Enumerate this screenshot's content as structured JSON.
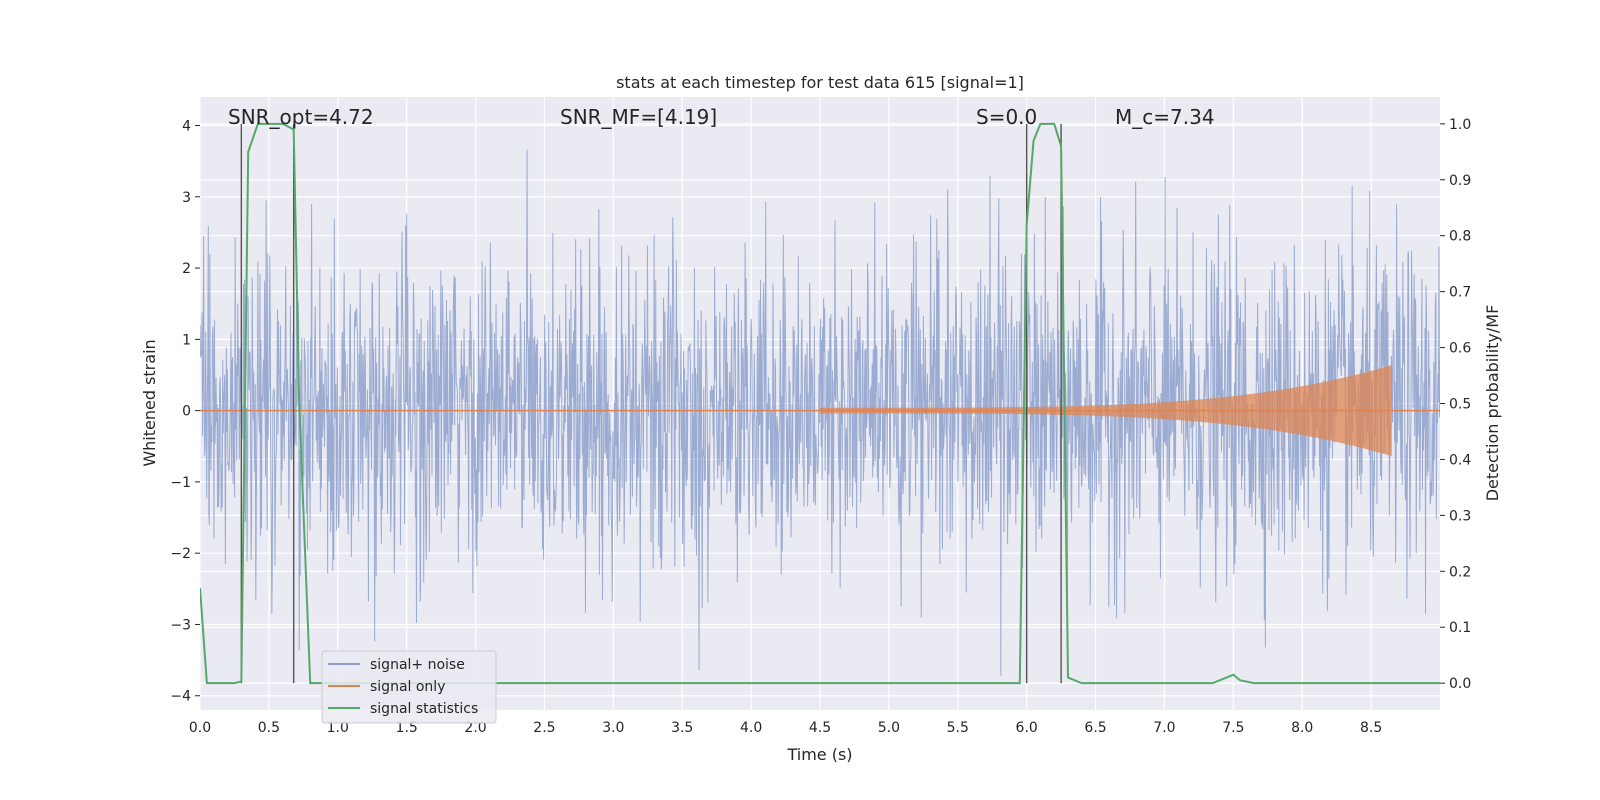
{
  "chart_data": {
    "type": "line",
    "title": "stats at each timestep for test data 615 [signal=1]",
    "xlabel": "Time (s)",
    "ylabel": "Whitened strain",
    "y2label": "Detection probability/MF",
    "xlim": [
      0.0,
      9.0
    ],
    "ylim": [
      -4.2,
      4.4
    ],
    "y2lim": [
      -0.048,
      1.048
    ],
    "xticks": [
      "0.0",
      "0.5",
      "1.0",
      "1.5",
      "2.0",
      "2.5",
      "3.0",
      "3.5",
      "4.0",
      "4.5",
      "5.0",
      "5.5",
      "6.0",
      "6.5",
      "7.0",
      "7.5",
      "8.0",
      "8.5"
    ],
    "yticks": [
      "-4",
      "-3",
      "-2",
      "-1",
      "0",
      "1",
      "2",
      "3",
      "4"
    ],
    "y2ticks": [
      "0.0",
      "0.1",
      "0.2",
      "0.3",
      "0.4",
      "0.5",
      "0.6",
      "0.7",
      "0.8",
      "0.9",
      "1.0"
    ],
    "grid": true,
    "legend_position": "lower-left",
    "annotations": {
      "snr_opt": "SNR_opt=4.72",
      "snr_mf": "SNR_MF=[4.19]",
      "s_value": "S=0.0",
      "mc_value": "M_c=7.34"
    },
    "vertical_markers": [
      0.3,
      0.68,
      6.0,
      6.25
    ],
    "series": [
      {
        "name": "signal+ noise",
        "color": "#8da0cb",
        "noise_envelope": {
          "x_start": 0.0,
          "x_end": 9.0,
          "typical_abs": 1.2,
          "peak_abs": 4.0
        }
      },
      {
        "name": "signal only",
        "color": "#dd8452",
        "chirp": {
          "x_start": 4.5,
          "x_end": 8.65,
          "peak_amplitude": 0.6
        }
      },
      {
        "name": "signal statistics",
        "color": "#55a868",
        "axis": "right",
        "x": [
          0.0,
          0.05,
          0.25,
          0.3,
          0.35,
          0.42,
          0.5,
          0.6,
          0.68,
          0.72,
          0.8,
          1.0,
          2.0,
          3.0,
          4.0,
          5.0,
          5.9,
          5.95,
          6.0,
          6.05,
          6.1,
          6.2,
          6.25,
          6.3,
          6.4,
          7.0,
          7.35,
          7.45,
          7.5,
          7.55,
          7.65,
          8.0,
          8.5,
          9.0
        ],
        "y": [
          0.17,
          0.0,
          0.0,
          0.003,
          0.95,
          1.0,
          1.0,
          1.0,
          0.99,
          0.5,
          0.0,
          0.0,
          0.0,
          0.0,
          0.0,
          0.0,
          0.0,
          0.0,
          0.82,
          0.97,
          1.0,
          1.0,
          0.96,
          0.01,
          0.0,
          0.0,
          0.0,
          0.01,
          0.015,
          0.005,
          0.0,
          0.0,
          0.0,
          0.0
        ]
      }
    ]
  }
}
